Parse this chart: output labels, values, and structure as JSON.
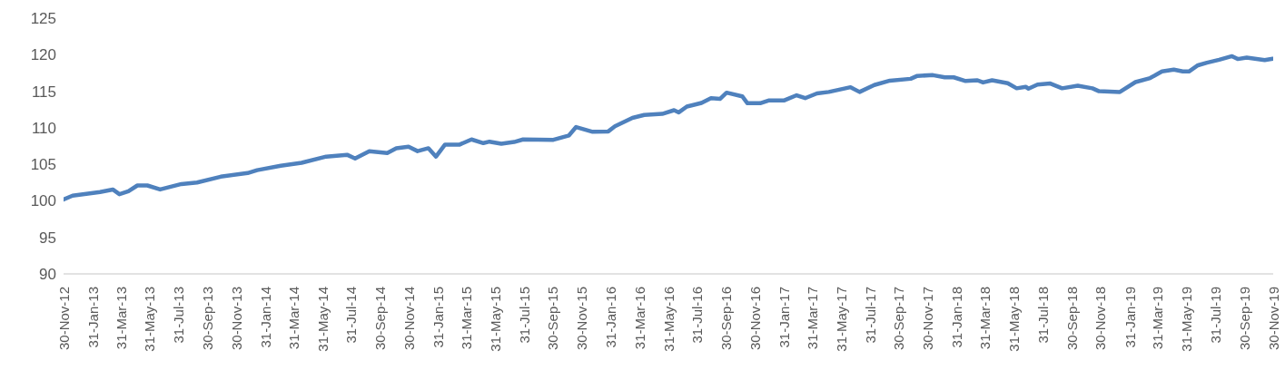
{
  "chart_data": {
    "type": "line",
    "color": "#4f81bd",
    "x": [
      "2012-11-30",
      "2012-12-19",
      "2013-02-15",
      "2013-03-14",
      "2013-03-28",
      "2013-04-16",
      "2013-05-05",
      "2013-05-26",
      "2013-06-22",
      "2013-08-06",
      "2013-09-08",
      "2013-10-28",
      "2013-12-24",
      "2014-01-13",
      "2014-03-04",
      "2014-04-17",
      "2014-06-08",
      "2014-07-22",
      "2014-08-08",
      "2014-09-07",
      "2014-10-15",
      "2014-11-03",
      "2014-11-29",
      "2014-12-18",
      "2015-01-10",
      "2015-01-26",
      "2015-02-14",
      "2015-03-17",
      "2015-04-11",
      "2015-05-06",
      "2015-05-19",
      "2015-06-13",
      "2015-07-10",
      "2015-07-29",
      "2015-10-01",
      "2015-11-03",
      "2015-11-18",
      "2015-12-23",
      "2016-01-25",
      "2016-02-08",
      "2016-03-16",
      "2016-04-10",
      "2016-05-18",
      "2016-06-12",
      "2016-06-22",
      "2016-07-09",
      "2016-08-09",
      "2016-08-29",
      "2016-09-17",
      "2016-10-01",
      "2016-11-03",
      "2016-11-14",
      "2016-12-11",
      "2016-12-30",
      "2017-01-31",
      "2017-02-26",
      "2017-03-16",
      "2017-04-10",
      "2017-05-05",
      "2017-06-20",
      "2017-07-09",
      "2017-08-09",
      "2017-09-11",
      "2017-10-25",
      "2017-11-08",
      "2017-12-11",
      "2018-01-05",
      "2018-01-24",
      "2018-02-18",
      "2018-03-15",
      "2018-03-27",
      "2018-04-15",
      "2018-05-18",
      "2018-06-06",
      "2018-06-25",
      "2018-07-01",
      "2018-07-20",
      "2018-08-16",
      "2018-09-10",
      "2018-10-13",
      "2018-11-13",
      "2018-11-27",
      "2019-01-10",
      "2019-02-12",
      "2019-03-15",
      "2019-04-09",
      "2019-05-04",
      "2019-05-23",
      "2019-06-05",
      "2019-06-24",
      "2019-07-13",
      "2019-08-08",
      "2019-09-04",
      "2019-09-16",
      "2019-10-05",
      "2019-11-12",
      "2019-11-29"
    ],
    "values": [
      100.2,
      100.7,
      101.2,
      101.55,
      100.9,
      101.3,
      102.1,
      102.1,
      101.55,
      102.3,
      102.5,
      103.3,
      103.8,
      104.2,
      104.8,
      105.2,
      106.05,
      106.3,
      105.8,
      106.8,
      106.55,
      107.2,
      107.4,
      106.8,
      107.2,
      106.05,
      107.7,
      107.7,
      108.4,
      107.9,
      108.1,
      107.8,
      108.05,
      108.4,
      108.35,
      108.95,
      110.1,
      109.45,
      109.5,
      110.2,
      111.35,
      111.75,
      111.9,
      112.4,
      112.1,
      112.9,
      113.4,
      114.05,
      113.95,
      114.8,
      114.3,
      113.35,
      113.35,
      113.75,
      113.75,
      114.45,
      114.05,
      114.7,
      114.9,
      115.55,
      114.9,
      115.85,
      116.45,
      116.7,
      117.1,
      117.2,
      116.9,
      116.9,
      116.4,
      116.5,
      116.2,
      116.5,
      116.1,
      115.4,
      115.6,
      115.35,
      115.9,
      116.05,
      115.4,
      115.75,
      115.4,
      115.0,
      114.9,
      116.25,
      116.8,
      117.7,
      117.95,
      117.7,
      117.7,
      118.55,
      118.9,
      119.3,
      119.8,
      119.4,
      119.6,
      119.25,
      119.45
    ],
    "ylim": [
      90,
      125
    ],
    "yticks": [
      90,
      95,
      100,
      105,
      110,
      115,
      120,
      125
    ],
    "xlim": [
      "2012-11-30",
      "2019-11-30"
    ],
    "xticks": [
      {
        "value": "2012-11-30",
        "label": "30-Nov-12"
      },
      {
        "value": "2013-01-31",
        "label": "31-Jan-13"
      },
      {
        "value": "2013-03-31",
        "label": "31-Mar-13"
      },
      {
        "value": "2013-05-31",
        "label": "31-May-13"
      },
      {
        "value": "2013-07-31",
        "label": "31-Jul-13"
      },
      {
        "value": "2013-09-30",
        "label": "30-Sep-13"
      },
      {
        "value": "2013-11-30",
        "label": "30-Nov-13"
      },
      {
        "value": "2014-01-31",
        "label": "31-Jan-14"
      },
      {
        "value": "2014-03-31",
        "label": "31-Mar-14"
      },
      {
        "value": "2014-05-31",
        "label": "31-May-14"
      },
      {
        "value": "2014-07-31",
        "label": "31-Jul-14"
      },
      {
        "value": "2014-09-30",
        "label": "30-Sep-14"
      },
      {
        "value": "2014-11-30",
        "label": "30-Nov-14"
      },
      {
        "value": "2015-01-31",
        "label": "31-Jan-15"
      },
      {
        "value": "2015-03-31",
        "label": "31-Mar-15"
      },
      {
        "value": "2015-05-31",
        "label": "31-May-15"
      },
      {
        "value": "2015-07-31",
        "label": "31-Jul-15"
      },
      {
        "value": "2015-09-30",
        "label": "30-Sep-15"
      },
      {
        "value": "2015-11-30",
        "label": "30-Nov-15"
      },
      {
        "value": "2016-01-31",
        "label": "31-Jan-16"
      },
      {
        "value": "2016-03-31",
        "label": "31-Mar-16"
      },
      {
        "value": "2016-05-31",
        "label": "31-May-16"
      },
      {
        "value": "2016-07-31",
        "label": "31-Jul-16"
      },
      {
        "value": "2016-09-30",
        "label": "30-Sep-16"
      },
      {
        "value": "2016-11-30",
        "label": "30-Nov-16"
      },
      {
        "value": "2017-01-31",
        "label": "31-Jan-17"
      },
      {
        "value": "2017-03-31",
        "label": "31-Mar-17"
      },
      {
        "value": "2017-05-31",
        "label": "31-May-17"
      },
      {
        "value": "2017-07-31",
        "label": "31-Jul-17"
      },
      {
        "value": "2017-09-30",
        "label": "30-Sep-17"
      },
      {
        "value": "2017-11-30",
        "label": "30-Nov-17"
      },
      {
        "value": "2018-01-31",
        "label": "31-Jan-18"
      },
      {
        "value": "2018-03-31",
        "label": "31-Mar-18"
      },
      {
        "value": "2018-05-31",
        "label": "31-May-18"
      },
      {
        "value": "2018-07-31",
        "label": "31-Jul-18"
      },
      {
        "value": "2018-09-30",
        "label": "30-Sep-18"
      },
      {
        "value": "2018-11-30",
        "label": "30-Nov-18"
      },
      {
        "value": "2019-01-31",
        "label": "31-Jan-19"
      },
      {
        "value": "2019-03-31",
        "label": "31-Mar-19"
      },
      {
        "value": "2019-05-31",
        "label": "31-May-19"
      },
      {
        "value": "2019-07-31",
        "label": "31-Jul-19"
      },
      {
        "value": "2019-09-30",
        "label": "30-Sep-19"
      },
      {
        "value": "2019-11-30",
        "label": "30-Nov-19"
      }
    ]
  }
}
